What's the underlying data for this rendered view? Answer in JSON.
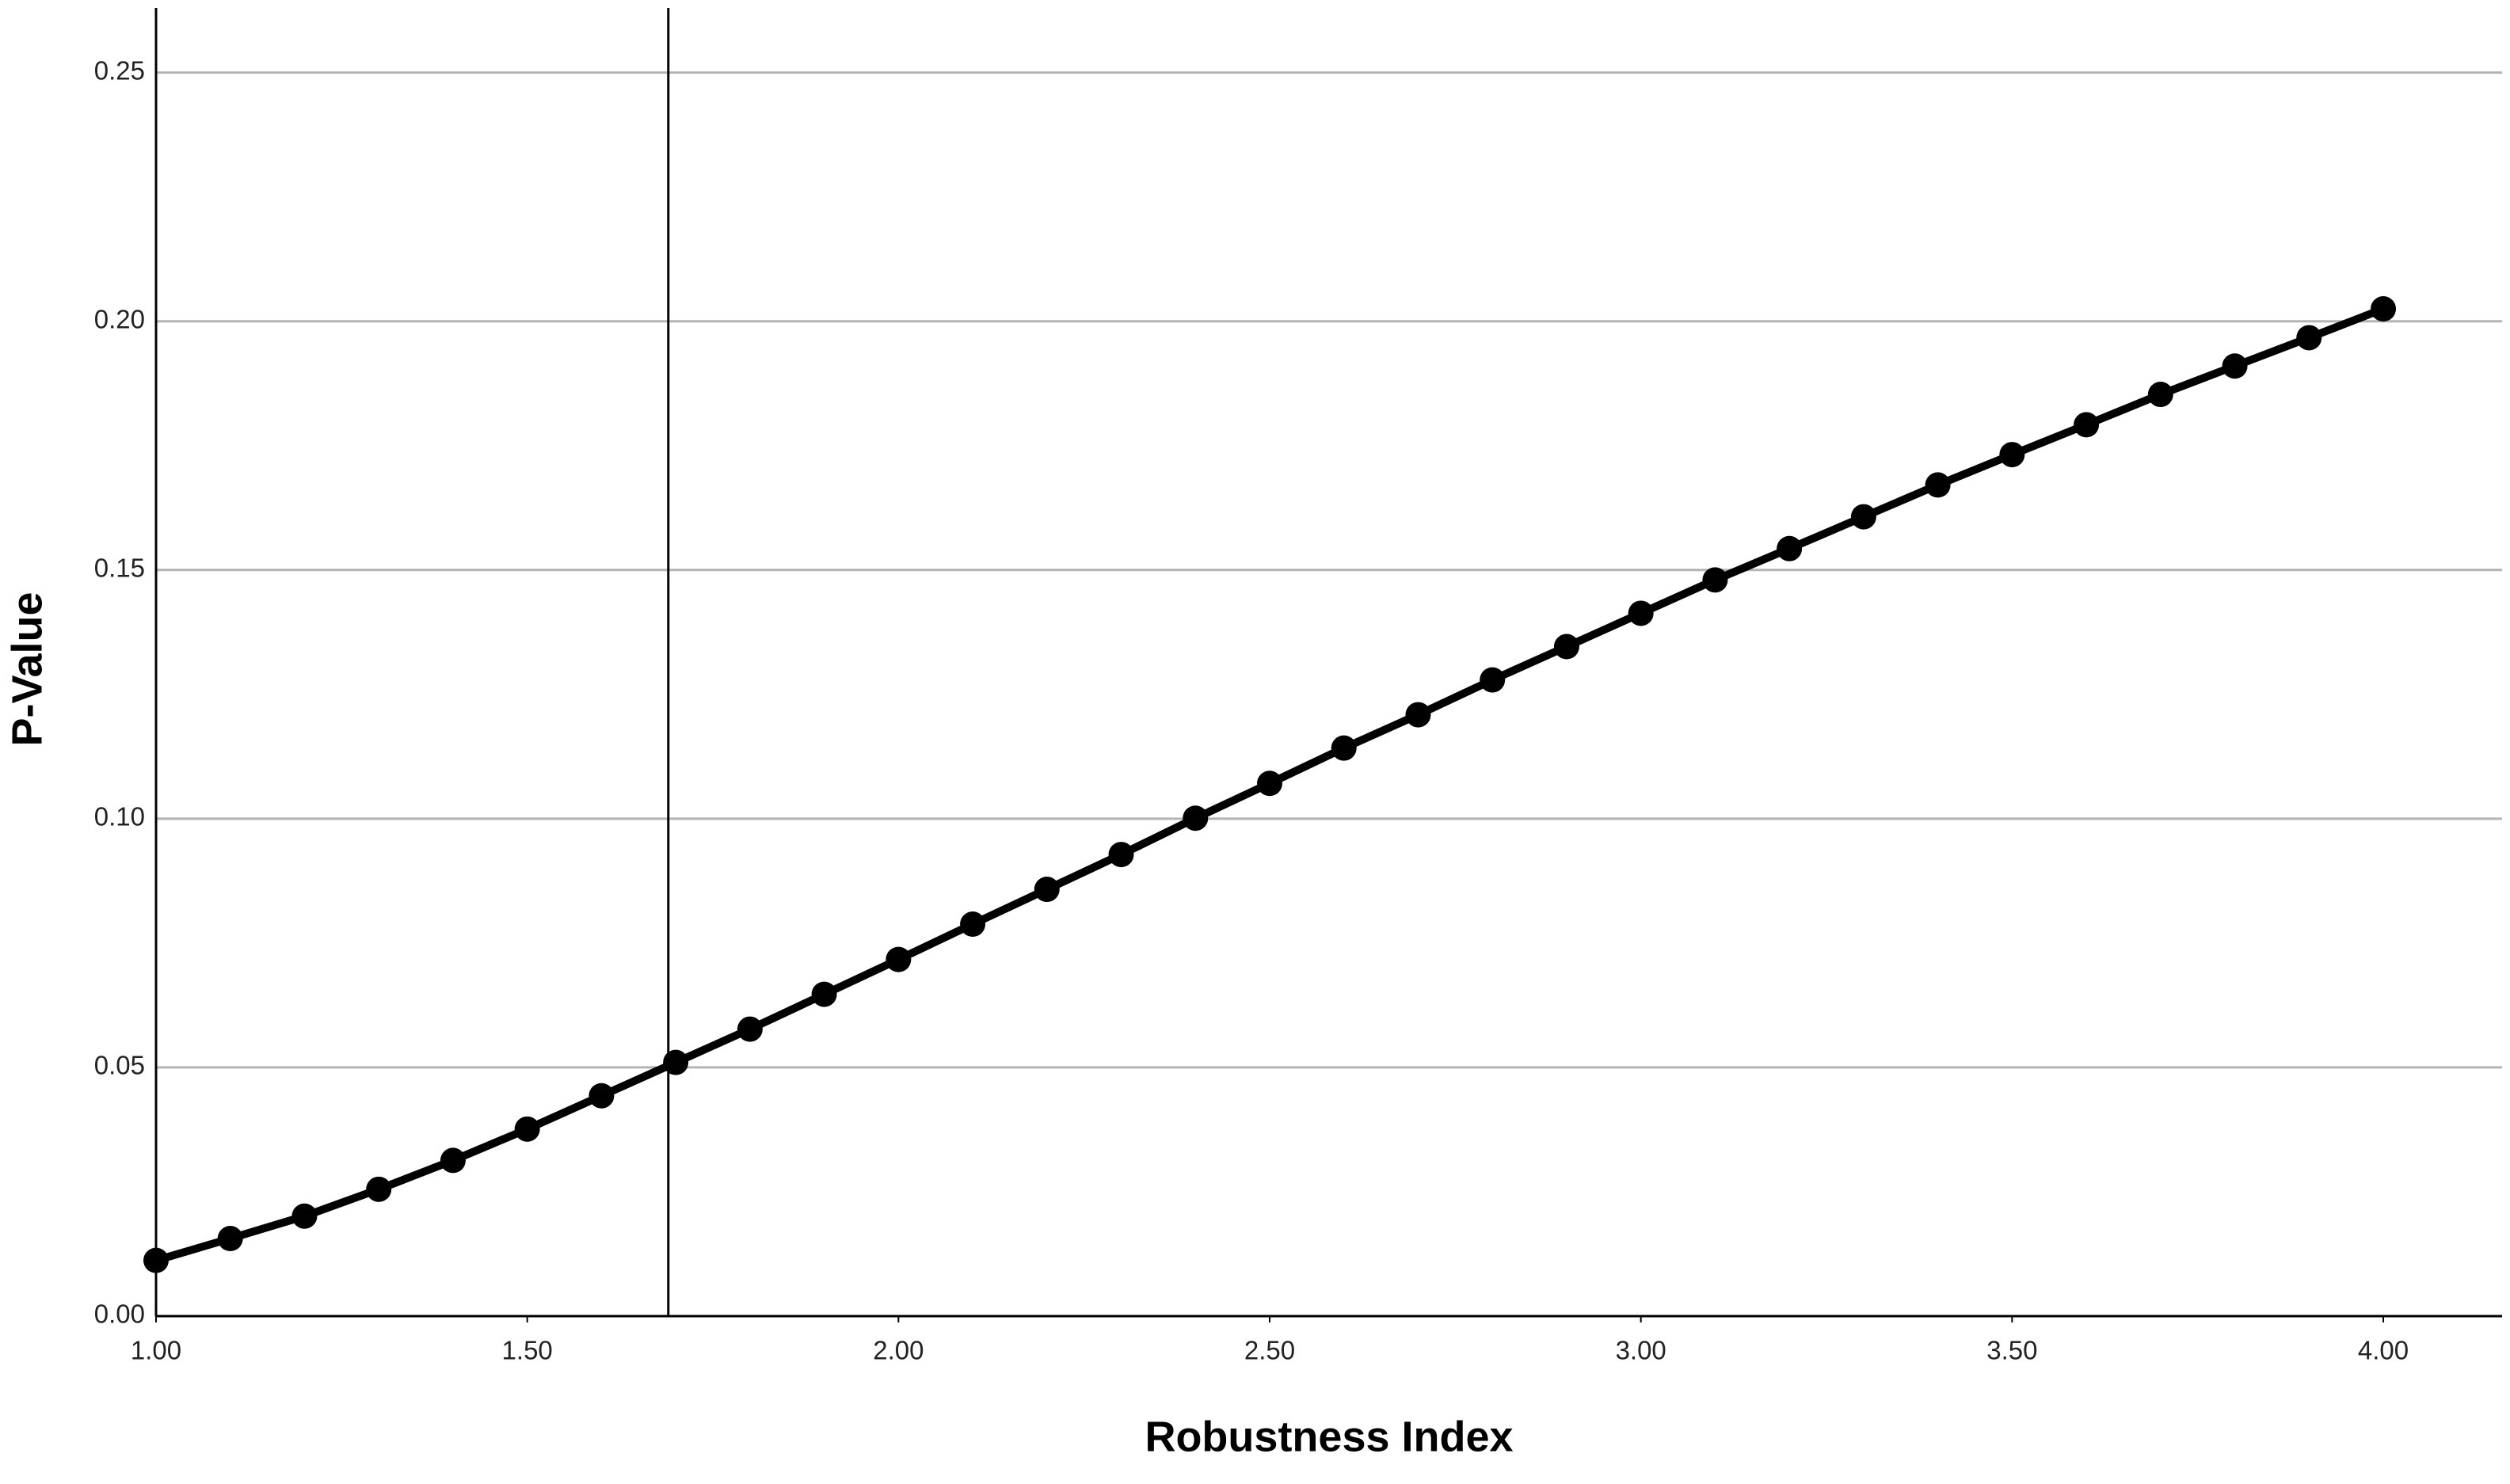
{
  "chart_data": {
    "type": "line",
    "xlabel": "Robustness Index",
    "ylabel": "P-Value",
    "x": [
      1.0,
      1.1,
      1.2,
      1.3,
      1.4,
      1.5,
      1.6,
      1.7,
      1.8,
      1.9,
      2.0,
      2.1,
      2.2,
      2.3,
      2.4,
      2.5,
      2.6,
      2.7,
      2.8,
      2.9,
      3.0,
      3.1,
      3.2,
      3.3,
      3.4,
      3.5,
      3.6,
      3.7,
      3.8,
      3.9,
      4.0
    ],
    "values": [
      0.0112,
      0.0156,
      0.0201,
      0.0255,
      0.0313,
      0.0376,
      0.0443,
      0.051,
      0.0577,
      0.0647,
      0.0717,
      0.0788,
      0.0858,
      0.0928,
      0.1001,
      0.1071,
      0.1142,
      0.1209,
      0.1279,
      0.1346,
      0.1413,
      0.148,
      0.1543,
      0.1607,
      0.1671,
      0.1732,
      0.1792,
      0.1853,
      0.191,
      0.1967,
      0.2025
    ],
    "color": "#000000",
    "reference_line_x": 1.69,
    "xlim": [
      1.0,
      4.16
    ],
    "ylim": [
      0,
      0.263
    ],
    "xticks": [
      {
        "value": 1.0,
        "label": "1.00"
      },
      {
        "value": 1.5,
        "label": "1.50"
      },
      {
        "value": 2.0,
        "label": "2.00"
      },
      {
        "value": 2.5,
        "label": "2.50"
      },
      {
        "value": 3.0,
        "label": "3.00"
      },
      {
        "value": 3.5,
        "label": "3.50"
      },
      {
        "value": 4.0,
        "label": "4.00"
      }
    ],
    "yticks": [
      {
        "value": 0,
        "label": "0.00"
      },
      {
        "value": 0.05,
        "label": "0.05"
      },
      {
        "value": 0.1,
        "label": "0.10"
      },
      {
        "value": 0.15,
        "label": "0.15"
      },
      {
        "value": 0.2,
        "label": "0.20"
      },
      {
        "value": 0.25,
        "label": "0.25"
      }
    ],
    "grid": true
  }
}
